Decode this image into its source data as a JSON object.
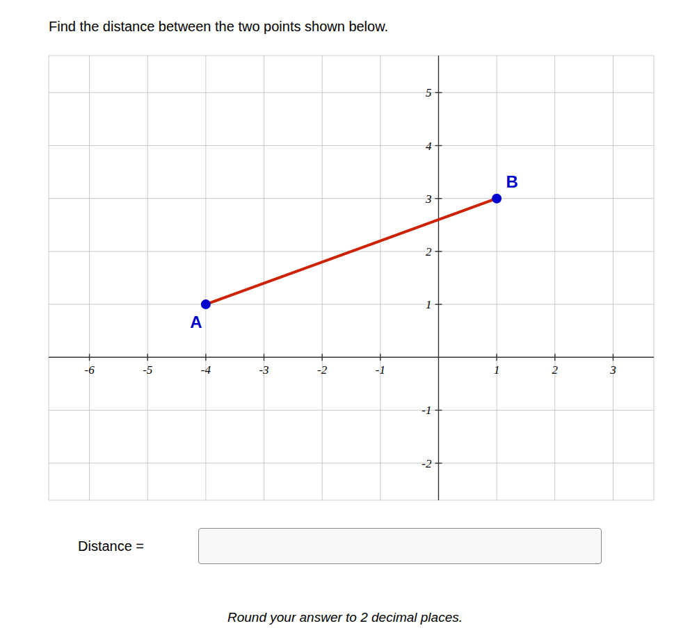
{
  "chart_data": {
    "type": "line",
    "title": "Find the distance between the two points shown below.",
    "x": [
      -4,
      1
    ],
    "values": [
      1,
      3
    ],
    "point_labels": [
      "A",
      "B"
    ],
    "color": "#cc2200",
    "colors": [
      "#0000cc",
      "#0000cc"
    ],
    "marker": "circle",
    "xlim": [
      -6.7,
      3.7
    ],
    "ylim": [
      -2.7,
      5.7
    ],
    "xticks": [
      -6,
      -5,
      -4,
      -3,
      -2,
      -1,
      1,
      2,
      3
    ],
    "yticks": [
      -2,
      -1,
      1,
      2,
      3,
      4,
      5
    ],
    "grid": true,
    "annotations": [
      "Distance =",
      "Round your answer to 2 decimal places."
    ]
  }
}
